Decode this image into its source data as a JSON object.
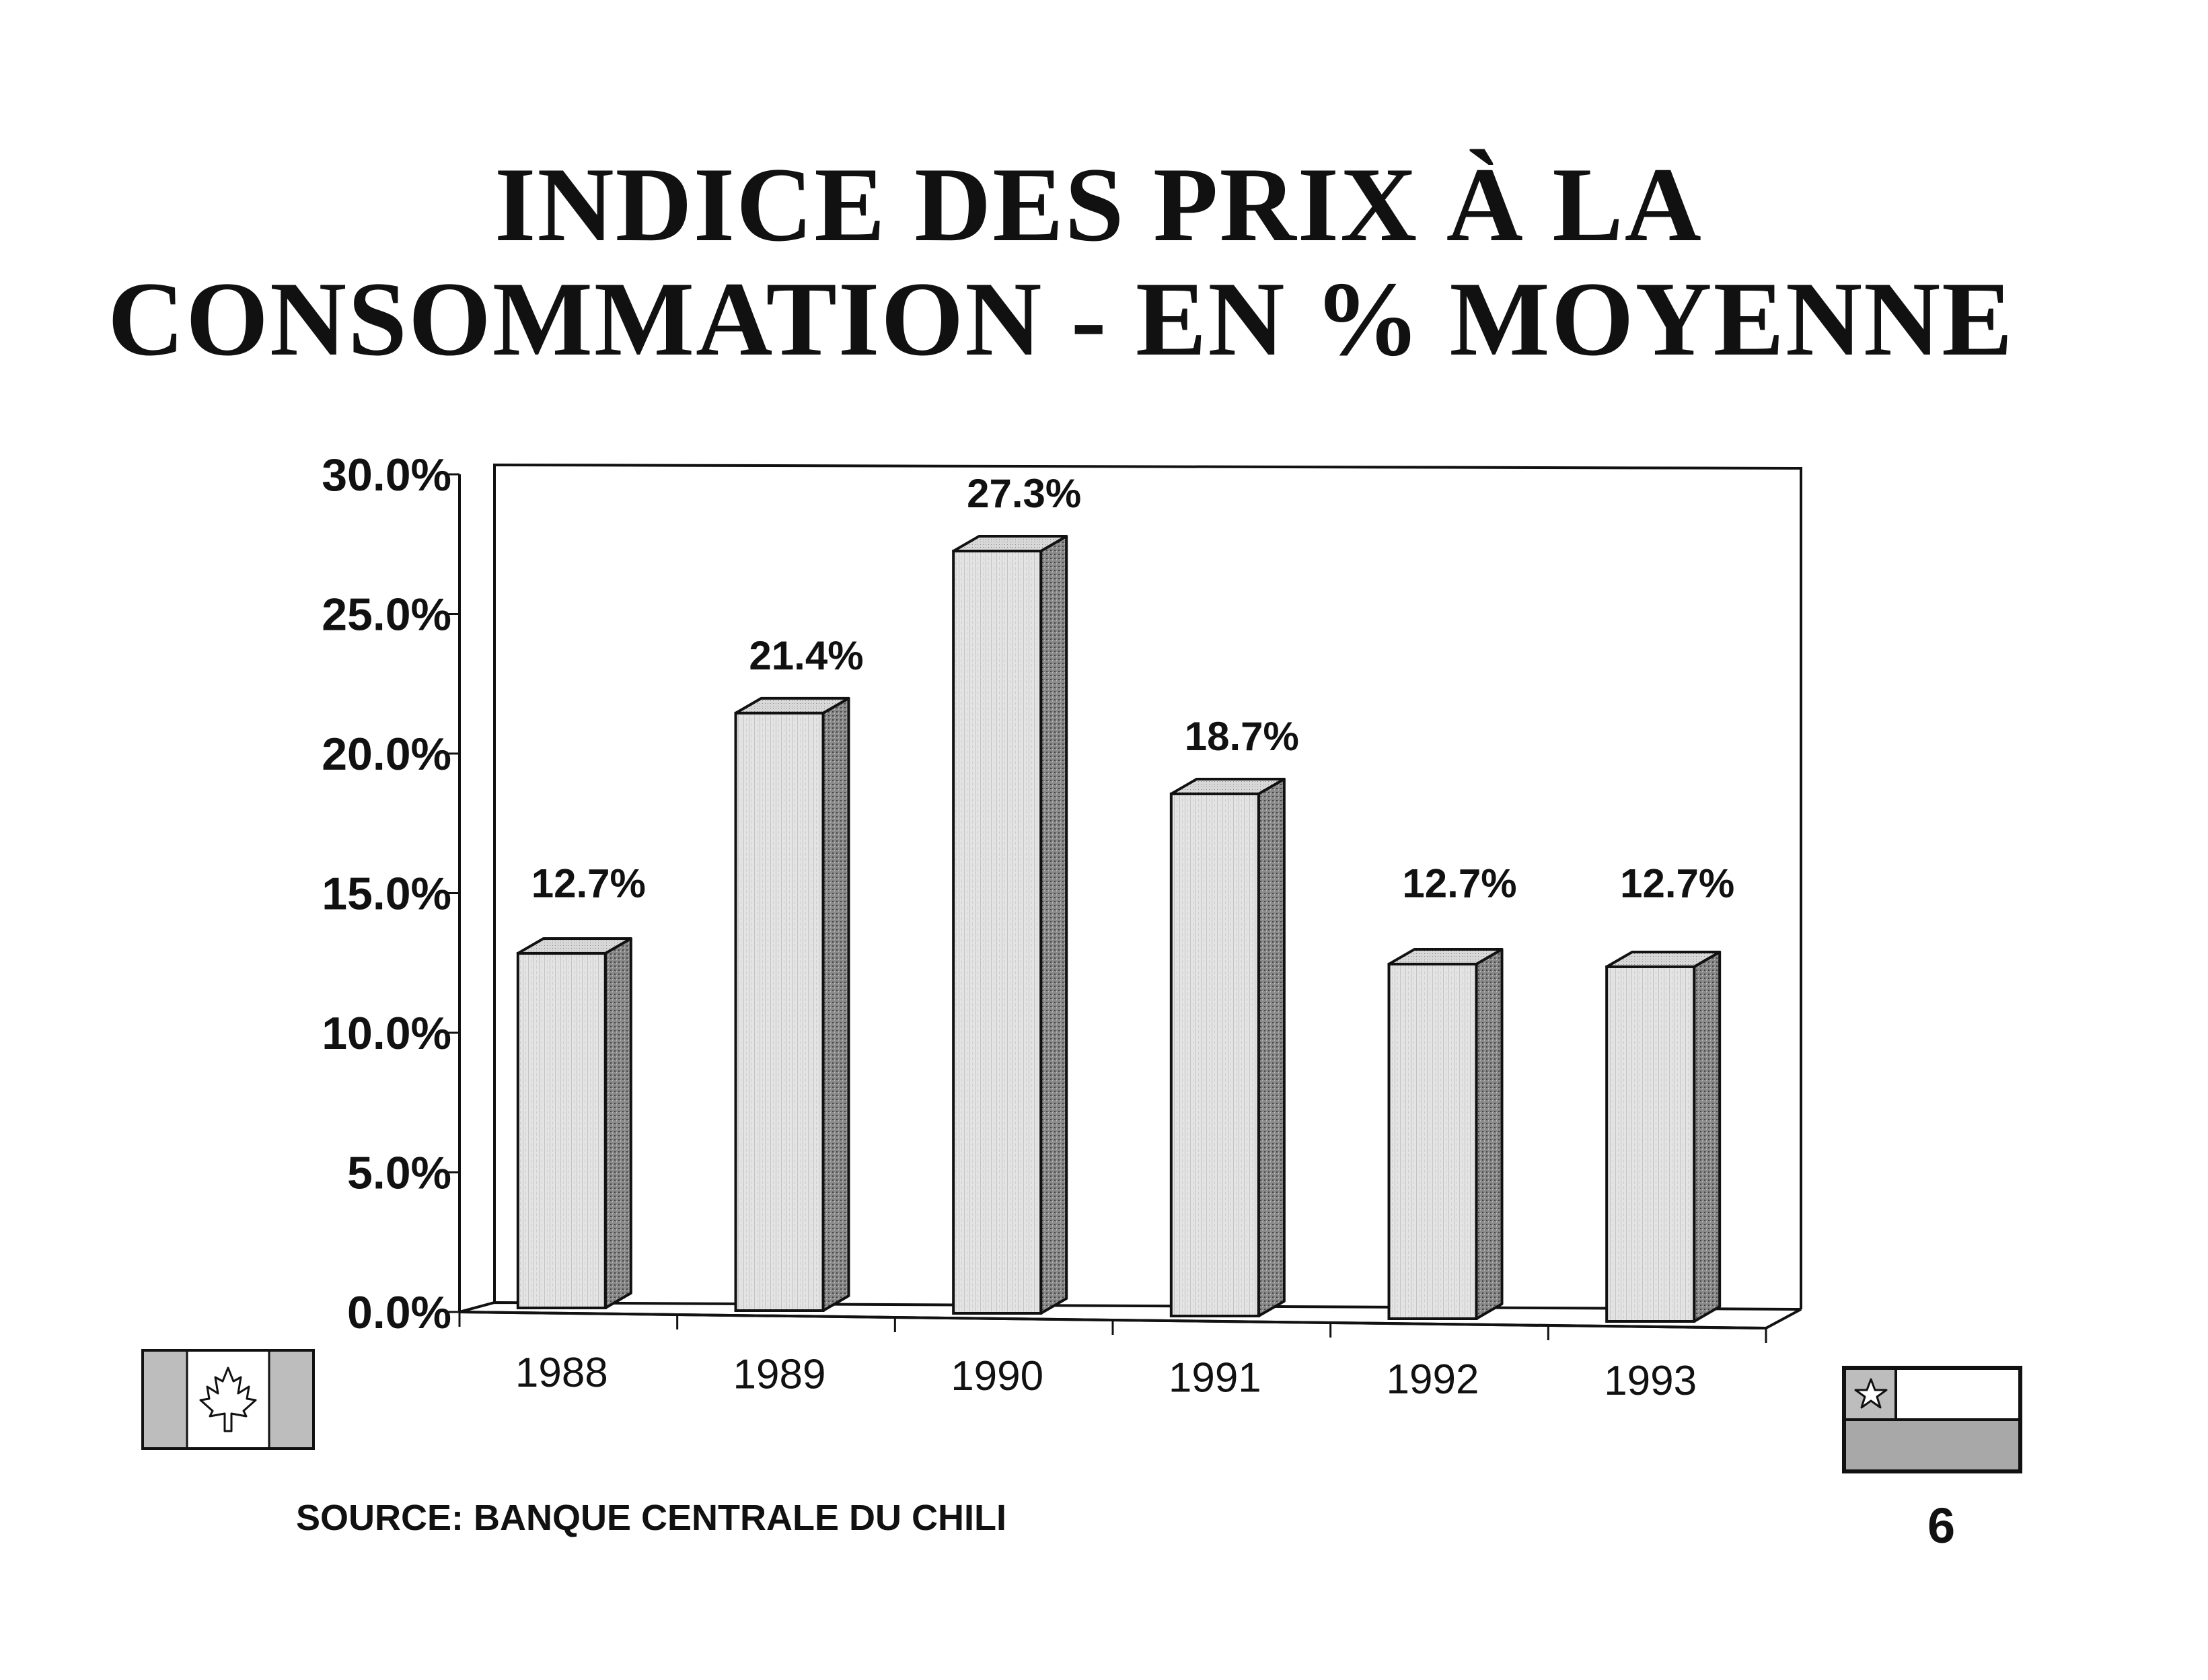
{
  "title": {
    "line1": "INDICE DES PRIX À LA",
    "line2": "CONSOMMATION  -  EN % MOYENNE"
  },
  "source": "SOURCE: BANQUE CENTRALE DU CHILI",
  "page_number": "6",
  "chart_data": {
    "type": "bar",
    "title": "INDICE DES PRIX À LA CONSOMMATION - EN % MOYENNE",
    "categories": [
      "1988",
      "1989",
      "1990",
      "1991",
      "1992",
      "1993"
    ],
    "values": [
      12.7,
      21.4,
      27.3,
      18.7,
      12.7,
      12.7
    ],
    "data_labels": [
      "12.7%",
      "21.4%",
      "27.3%",
      "18.7%",
      "12.7%",
      "12.7%"
    ],
    "yticks": [
      "0.0%",
      "5.0%",
      "10.0%",
      "15.0%",
      "20.0%",
      "25.0%",
      "30.0%"
    ],
    "ylim": [
      0,
      30
    ],
    "xlabel": "",
    "ylabel": "",
    "style": "3d-bars",
    "grid": false,
    "legend": "none"
  },
  "colors": {
    "bar_front": "#dcdcdc",
    "bar_side": "#7a7a7a",
    "bar_top": "#bdbdbd",
    "axis": "#111111"
  },
  "icons": {
    "left_flag": "canada-flag-icon",
    "right_flag": "chile-flag-icon"
  }
}
